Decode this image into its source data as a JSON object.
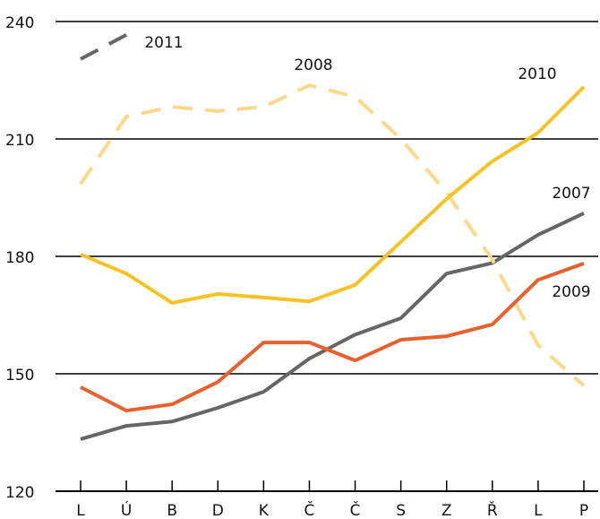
{
  "chart_data": {
    "type": "line",
    "categories": [
      "L",
      "Ú",
      "B",
      "D",
      "K",
      "Č",
      "Č",
      "S",
      "Z",
      "Ř",
      "L",
      "P"
    ],
    "series": [
      {
        "name": "2007",
        "color": "#666666",
        "dashed": false,
        "values": [
          133.3,
          136.7,
          137.8,
          141.3,
          145.4,
          153.9,
          160,
          164.2,
          175.6,
          178.3,
          185.5,
          191
        ]
      },
      {
        "name": "2008",
        "color": "#fcd98a",
        "dashed": true,
        "values": [
          198.5,
          215.7,
          218.2,
          217.1,
          218.2,
          223.7,
          220.8,
          210,
          196.3,
          179.1,
          157.3,
          147
        ]
      },
      {
        "name": "2009",
        "color": "#e8602c",
        "dashed": false,
        "values": [
          146.6,
          140.6,
          142.2,
          147.9,
          158,
          158,
          153.4,
          158.7,
          159.6,
          162.6,
          174,
          178.2
        ]
      },
      {
        "name": "2010",
        "color": "#f7c223",
        "dashed": false,
        "values": [
          180.5,
          175.6,
          168.1,
          170.4,
          169.5,
          168.5,
          172.7,
          183.7,
          194.7,
          204.3,
          211.6,
          223.3
        ]
      },
      {
        "name": "2011",
        "color": "#666666",
        "dashed": true,
        "values": [
          230.4,
          236.6,
          null,
          null,
          null,
          null,
          null,
          null,
          null,
          null,
          null,
          null
        ]
      }
    ],
    "ylim": [
      120,
      240
    ],
    "yticks": [
      120,
      150,
      180,
      210,
      240
    ],
    "grid": true
  }
}
